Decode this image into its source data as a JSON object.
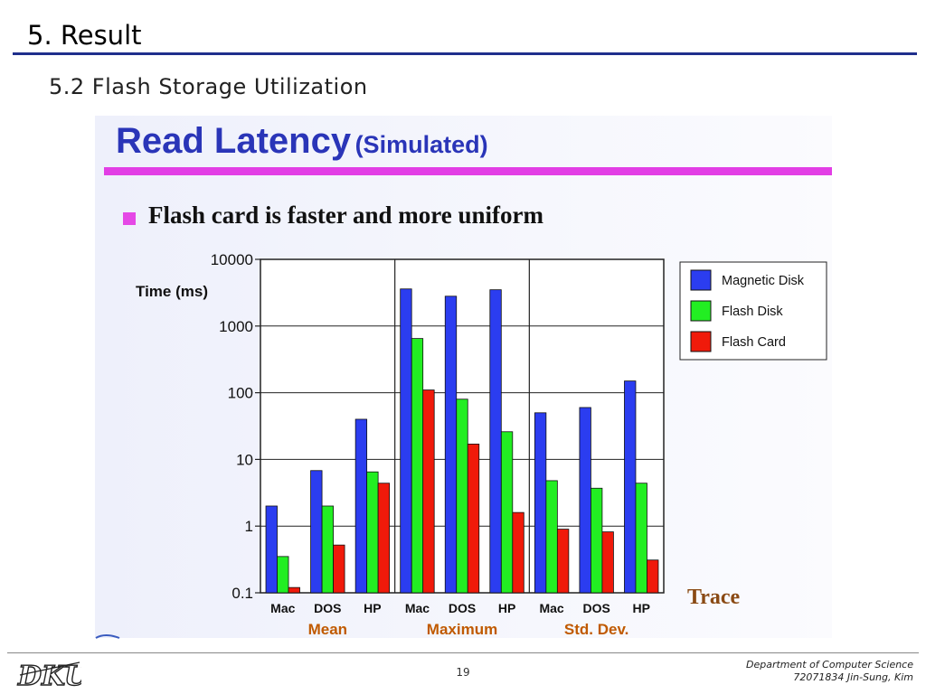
{
  "slide": {
    "title": "5. Result",
    "subtitle": "5.2 Flash Storage Utilization",
    "panel_title": "Read Latency",
    "panel_title_sub": "(Simulated)",
    "bullet": "Flash card is faster and more uniform",
    "page_number": "19",
    "footer_line1": "Department of Computer Science",
    "footer_line2": "72071834 Jin-Sung, Kim"
  },
  "colors": {
    "title_blue": "#2a35b8",
    "accent_pink": "#e23ee5",
    "magnetic_disk": "#2b3df0",
    "flash_disk": "#22ee22",
    "flash_card": "#f01a0a",
    "group_label": "#c05a00",
    "trace_label": "#8a4a14"
  },
  "chart_data": {
    "type": "bar",
    "ylabel": "Time (ms)",
    "yscale": "log",
    "ylim": [
      0.1,
      10000
    ],
    "ytick_labels": [
      "0.1",
      "1",
      "10",
      "100",
      "1000",
      "10000"
    ],
    "categories": [
      "Mac",
      "DOS",
      "HP",
      "Mac",
      "DOS",
      "HP",
      "Mac",
      "DOS",
      "HP"
    ],
    "groups": [
      {
        "label": "Mean",
        "categories": [
          "Mac",
          "DOS",
          "HP"
        ]
      },
      {
        "label": "Maximum",
        "categories": [
          "Mac",
          "DOS",
          "HP"
        ]
      },
      {
        "label": "Std. Dev.",
        "categories": [
          "Mac",
          "DOS",
          "HP"
        ]
      }
    ],
    "series": [
      {
        "name": "Magnetic Disk",
        "values": [
          2.0,
          6.8,
          40,
          3600,
          2800,
          3500,
          50,
          60,
          150
        ]
      },
      {
        "name": "Flash Disk",
        "values": [
          0.35,
          2.0,
          6.5,
          650,
          80,
          26,
          4.8,
          3.7,
          4.4
        ]
      },
      {
        "name": "Flash Card",
        "values": [
          0.12,
          0.52,
          4.4,
          110,
          17,
          1.6,
          0.9,
          0.82,
          0.31
        ]
      }
    ],
    "xlabel": "Trace",
    "grid": true,
    "legend_position": "right"
  }
}
